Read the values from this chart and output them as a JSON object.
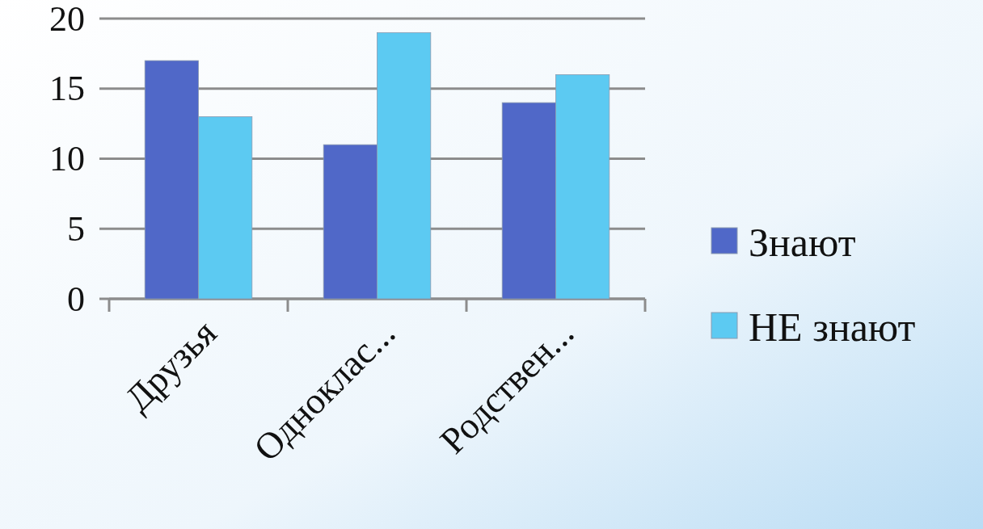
{
  "chart_data": {
    "type": "bar",
    "categories": [
      "Друзья",
      "Одноклас...",
      "Родствен..."
    ],
    "series": [
      {
        "name": "Знают",
        "color": "#5068c8",
        "values": [
          17,
          11,
          14
        ]
      },
      {
        "name": "НЕ знают",
        "color": "#5ccaf2",
        "values": [
          13,
          19,
          16
        ]
      }
    ],
    "ylim": [
      0,
      20
    ],
    "yticks": [
      0,
      5,
      10,
      15,
      20
    ],
    "grid": "y",
    "legend": "right"
  }
}
